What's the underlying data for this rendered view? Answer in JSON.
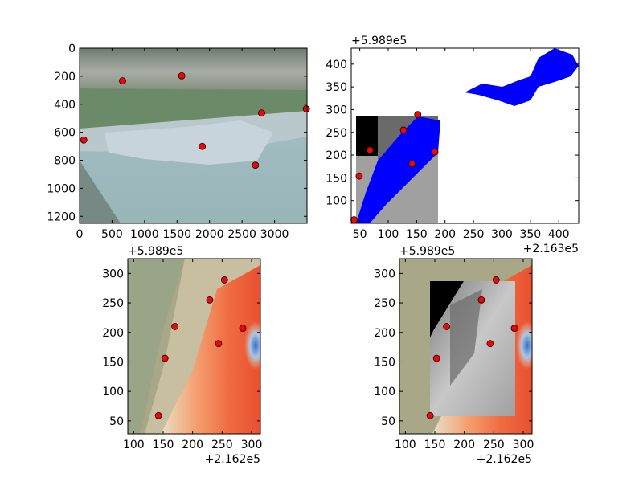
{
  "chart_data": [
    {
      "type": "scatter",
      "background": "photo",
      "x_offset_label": "",
      "y_offset_label": "",
      "xlim": [
        0,
        3500
      ],
      "ylim": [
        1250,
        0
      ],
      "xticks": [
        "0",
        "500",
        "1000",
        "1500",
        "2000",
        "2500",
        "3000"
      ],
      "yticks": [
        "0",
        "200",
        "400",
        "600",
        "800",
        "1000",
        "1200"
      ],
      "points": [
        [
          662,
          233
        ],
        [
          1572,
          197
        ],
        [
          2801,
          463
        ],
        [
          3490,
          433
        ],
        [
          65,
          655
        ],
        [
          1888,
          701
        ],
        [
          2706,
          835
        ]
      ],
      "marker_color": "#ff0000"
    },
    {
      "type": "scatter",
      "background": "blue-mask",
      "x_offset_label": "+2.163e5",
      "y_offset_label": "+5.989e5",
      "xlim": [
        35,
        435
      ],
      "ylim": [
        50,
        435
      ],
      "xticks": [
        "50",
        "100",
        "150",
        "200",
        "250",
        "300",
        "350",
        "400"
      ],
      "yticks": [
        "100",
        "150",
        "200",
        "250",
        "300",
        "350",
        "400"
      ],
      "points": [
        [
          152,
          289
        ],
        [
          127,
          255
        ],
        [
          68,
          211
        ],
        [
          142,
          181
        ],
        [
          182,
          207
        ],
        [
          49,
          154
        ],
        [
          40,
          58
        ]
      ],
      "marker_color": "#ff0000",
      "mask_color": "#0000ff"
    },
    {
      "type": "scatter",
      "background": "orthophoto-heatmap",
      "x_offset_label": "+2.162e5",
      "y_offset_label": "+5.989e5",
      "xlim": [
        90,
        315
      ],
      "ylim": [
        28,
        325
      ],
      "xticks": [
        "100",
        "150",
        "200",
        "250",
        "300"
      ],
      "yticks": [
        "50",
        "100",
        "150",
        "200",
        "250",
        "300"
      ],
      "points": [
        [
          254,
          289
        ],
        [
          229,
          255
        ],
        [
          170,
          210
        ],
        [
          244,
          181
        ],
        [
          285,
          207
        ],
        [
          153,
          156
        ],
        [
          142,
          59
        ]
      ],
      "marker_color": "#ff0000"
    },
    {
      "type": "scatter",
      "background": "orthophoto-heatmap-grayscale-overlay",
      "x_offset_label": "+2.162e5",
      "y_offset_label": "+5.989e5",
      "xlim": [
        90,
        315
      ],
      "ylim": [
        28,
        325
      ],
      "xticks": [
        "100",
        "150",
        "200",
        "250",
        "300"
      ],
      "yticks": [
        "50",
        "100",
        "150",
        "200",
        "250",
        "300"
      ],
      "points": [
        [
          254,
          289
        ],
        [
          229,
          255
        ],
        [
          170,
          210
        ],
        [
          244,
          181
        ],
        [
          285,
          207
        ],
        [
          153,
          156
        ],
        [
          142,
          59
        ]
      ],
      "marker_color": "#ff0000"
    }
  ]
}
